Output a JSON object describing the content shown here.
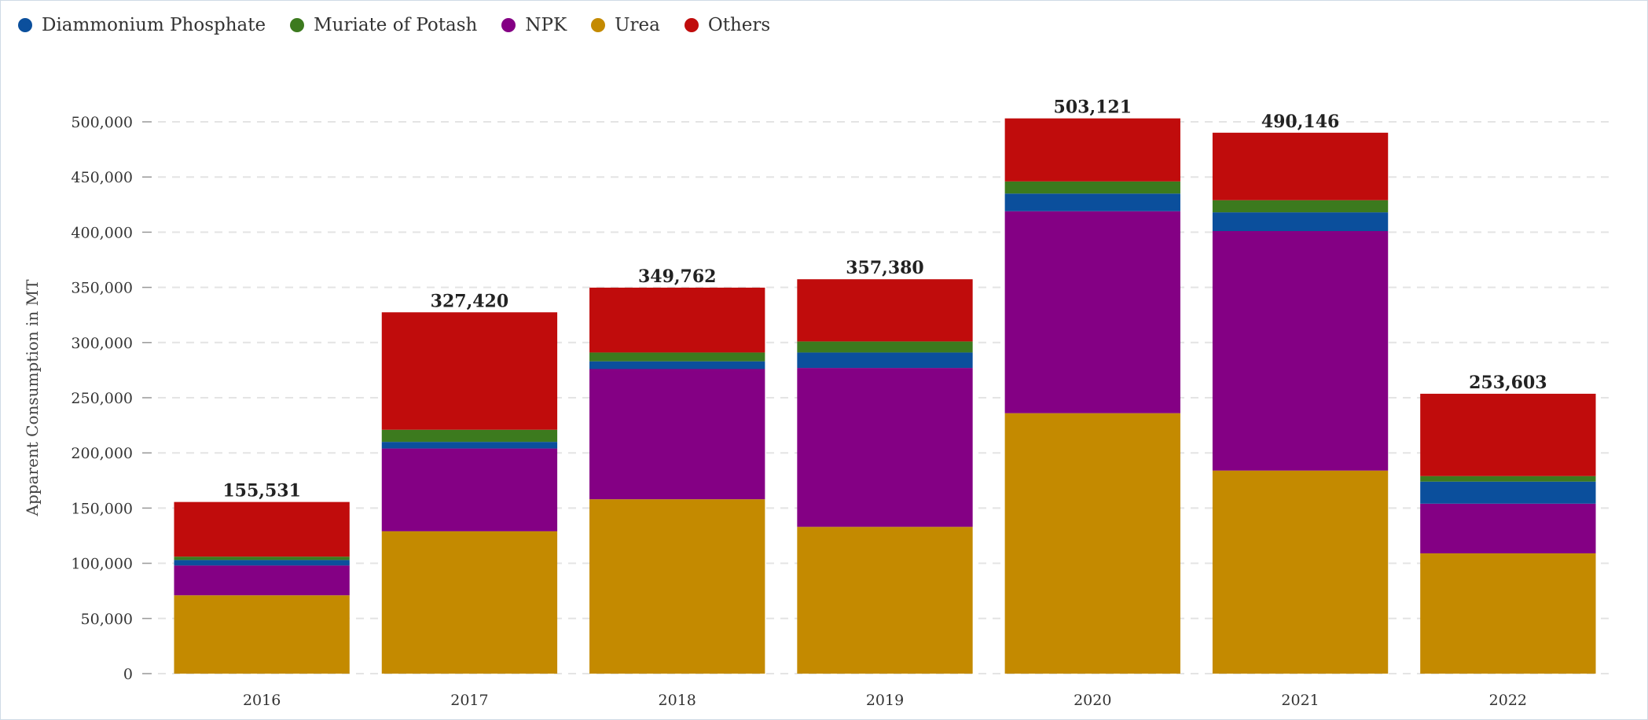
{
  "chart_data": {
    "type": "bar",
    "stacked": true,
    "title": "",
    "xlabel": "",
    "ylabel": "Apparent Consumption in MT",
    "ylim": [
      0,
      525000
    ],
    "y_ticks": [
      0,
      50000,
      100000,
      150000,
      200000,
      250000,
      300000,
      350000,
      400000,
      450000,
      500000
    ],
    "y_tick_labels": [
      "0",
      "50,000",
      "100,000",
      "150,000",
      "200,000",
      "250,000",
      "300,000",
      "350,000",
      "400,000",
      "450,000",
      "500,000"
    ],
    "grid": true,
    "legend_position": "top-left",
    "categories": [
      "2016",
      "2017",
      "2018",
      "2019",
      "2020",
      "2021",
      "2022"
    ],
    "totals": [
      155531,
      327420,
      349762,
      357380,
      503121,
      490146,
      253603
    ],
    "total_labels": [
      "155,531",
      "327,420",
      "349,762",
      "357,380",
      "503,121",
      "490,146",
      "253,603"
    ],
    "stack_order": [
      "Urea",
      "NPK",
      "Diammonium Phosphate",
      "Muriate of Potash",
      "Others"
    ],
    "legend_order": [
      "Diammonium Phosphate",
      "Muriate of Potash",
      "NPK",
      "Urea",
      "Others"
    ],
    "series": [
      {
        "name": "Diammonium Phosphate",
        "color": "#0b4f9c",
        "values": [
          5000,
          6000,
          7000,
          14000,
          16000,
          17000,
          20000
        ]
      },
      {
        "name": "Muriate of Potash",
        "color": "#3c7a1e",
        "values": [
          3000,
          11000,
          8000,
          10000,
          11000,
          11000,
          5000
        ]
      },
      {
        "name": "NPK",
        "color": "#840084",
        "values": [
          27000,
          75000,
          118000,
          144000,
          183000,
          217000,
          45000
        ]
      },
      {
        "name": "Urea",
        "color": "#c48a00",
        "values": [
          71000,
          129000,
          158000,
          133000,
          236000,
          184000,
          109000
        ]
      },
      {
        "name": "Others",
        "color": "#c00c0c",
        "values": [
          49531,
          106420,
          58762,
          56380,
          57121,
          61146,
          74603
        ]
      }
    ]
  }
}
